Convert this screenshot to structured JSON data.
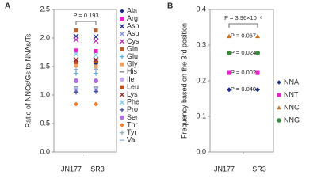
{
  "chart_data": [
    {
      "type": "scatter",
      "panel": "A",
      "ylabel": "Ratio of NNCs/Gs to NNAs/Ts",
      "categories": [
        "JN177",
        "SR3"
      ],
      "ylim": [
        0,
        2.5
      ],
      "yticks": [
        {
          "value": 0,
          "label": "0.0"
        },
        0.5,
        {
          "value": 1,
          "label": "1.0"
        },
        1.5,
        {
          "value": 2,
          "label": "2.0"
        },
        2.5
      ],
      "bracket_label": "P = 0.193",
      "series": [
        {
          "name": "Ala",
          "marker": "diamond",
          "color": "#1f2d86",
          "values": [
            1.55,
            1.55
          ]
        },
        {
          "name": "Arg",
          "marker": "square",
          "color": "#ee1ecc",
          "values": [
            1.78,
            1.77
          ]
        },
        {
          "name": "Asn",
          "marker": "x",
          "color": "#1f2d86",
          "values": [
            2.03,
            2.02
          ]
        },
        {
          "name": "Asp",
          "marker": "x",
          "color": "#7f8fd8",
          "values": [
            1.08,
            1.1
          ]
        },
        {
          "name": "Cys",
          "marker": "x",
          "color": "#b02fb0",
          "values": [
            1.97,
            1.95
          ]
        },
        {
          "name": "Gln",
          "marker": "square",
          "color": "#b8602a",
          "values": [
            2.13,
            2.13
          ]
        },
        {
          "name": "Glu",
          "marker": "plus",
          "color": "#5ab0e0",
          "values": [
            1.38,
            1.38
          ]
        },
        {
          "name": "Gly",
          "marker": "square",
          "color": "#f0a060",
          "values": [
            1.52,
            1.5
          ]
        },
        {
          "name": "His",
          "marker": "dash",
          "color": "#909090",
          "values": [
            1.14,
            1.14
          ]
        },
        {
          "name": "Ile",
          "marker": "circle",
          "color": "#c8a8f0",
          "values": [
            1.1,
            1.1
          ]
        },
        {
          "name": "Leu",
          "marker": "square",
          "color": "#c05020",
          "values": [
            1.58,
            1.6
          ]
        },
        {
          "name": "Lys",
          "marker": "x",
          "color": "#8a2a2a",
          "values": [
            1.62,
            1.62
          ]
        },
        {
          "name": "Phe",
          "marker": "x",
          "color": "#80c8e8",
          "values": [
            1.72,
            1.7
          ]
        },
        {
          "name": "Pro",
          "marker": "plus",
          "color": "#4050a0",
          "values": [
            1.05,
            1.06
          ]
        },
        {
          "name": "Ser",
          "marker": "circle",
          "color": "#b070e0",
          "values": [
            1.25,
            1.25
          ]
        },
        {
          "name": "Thr",
          "marker": "diamond",
          "color": "#f08030",
          "values": [
            0.84,
            0.84
          ]
        },
        {
          "name": "Tyr",
          "marker": "plus",
          "color": "#90b0c0",
          "values": [
            1.45,
            1.45
          ]
        },
        {
          "name": "Val",
          "marker": "dash",
          "color": "#a0c0e0",
          "values": [
            1.12,
            1.12
          ]
        }
      ]
    },
    {
      "type": "scatter",
      "panel": "B",
      "ylabel": "Frequency based on the 3rd position",
      "categories": [
        "JN177",
        "SR3"
      ],
      "ylim": [
        0,
        0.4
      ],
      "yticks": [
        {
          "value": 0,
          "label": "0.0"
        },
        0.1,
        0.2,
        0.3,
        0.4
      ],
      "bracket_label": "P = 3.96×10⁻⁶",
      "series": [
        {
          "name": "NNA",
          "marker": "diamond",
          "color": "#1f2d86",
          "values": [
            0.175,
            0.175
          ],
          "annotation": "P = 0.040"
        },
        {
          "name": "NNT",
          "marker": "square",
          "color": "#ee1ecc",
          "values": [
            0.222,
            0.222
          ],
          "annotation": "P = 0.002"
        },
        {
          "name": "NNC",
          "marker": "triangle",
          "color": "#c8742a",
          "values": [
            0.325,
            0.325
          ],
          "annotation": "P = 0.067"
        },
        {
          "name": "NNG",
          "marker": "circle",
          "color": "#3a8a3a",
          "values": [
            0.278,
            0.278
          ],
          "annotation": "P = 0.024"
        }
      ]
    }
  ]
}
